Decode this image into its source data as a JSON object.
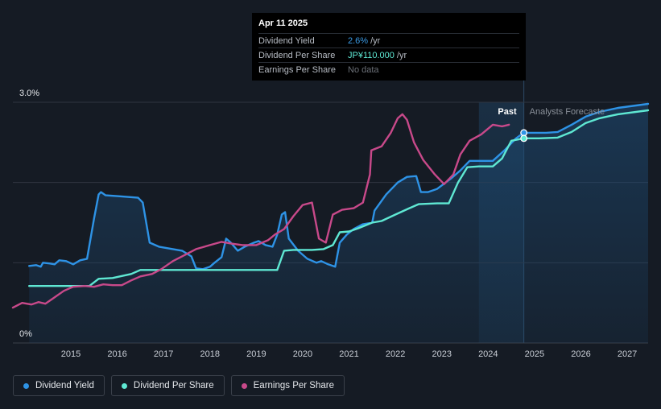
{
  "colors": {
    "background": "#151b24",
    "dividend_yield": "#2e93e6",
    "dividend_per_share": "#5fe8d3",
    "earnings_per_share": "#c8498a",
    "forecast_band": "#1c3a55"
  },
  "tooltip": {
    "date": "Apr 11 2025",
    "rows": [
      {
        "label": "Dividend Yield",
        "value": "2.6%",
        "unit": "/yr"
      },
      {
        "label": "Dividend Per Share",
        "value": "JP¥110.000",
        "unit": "/yr"
      },
      {
        "label": "Earnings Per Share",
        "value": "No data",
        "unit": ""
      }
    ]
  },
  "legend": [
    {
      "label": "Dividend Yield",
      "color": "#2e93e6"
    },
    {
      "label": "Dividend Per Share",
      "color": "#5fe8d3"
    },
    {
      "label": "Earnings Per Share",
      "color": "#c8498a"
    }
  ],
  "chart_data": {
    "type": "line",
    "y_tick_labels": [
      "3.0%",
      "0%"
    ],
    "ylim": [
      0,
      3.0
    ],
    "xlim": [
      2014.25,
      2027.95
    ],
    "x_tick_labels": [
      "2015",
      "2016",
      "2017",
      "2018",
      "2019",
      "2020",
      "2021",
      "2022",
      "2023",
      "2024",
      "2025",
      "2026",
      "2027"
    ],
    "regions": {
      "past_label": "Past",
      "forecast_label": "Analysts Forecaste",
      "past_band_start": 2024.3,
      "divider": 2025.27
    },
    "grid": "horizontal",
    "series": [
      {
        "name": "Dividend Yield",
        "key": "dividend_yield",
        "filled": true,
        "points": [
          [
            2014.6,
            0.96
          ],
          [
            2014.75,
            0.97
          ],
          [
            2014.85,
            0.95
          ],
          [
            2014.9,
            1.0
          ],
          [
            2015.05,
            0.99
          ],
          [
            2015.15,
            0.98
          ],
          [
            2015.25,
            1.03
          ],
          [
            2015.4,
            1.02
          ],
          [
            2015.55,
            0.98
          ],
          [
            2015.7,
            1.03
          ],
          [
            2015.85,
            1.05
          ],
          [
            2016.0,
            1.55
          ],
          [
            2016.1,
            1.85
          ],
          [
            2016.15,
            1.88
          ],
          [
            2016.25,
            1.84
          ],
          [
            2016.5,
            1.83
          ],
          [
            2016.95,
            1.81
          ],
          [
            2017.05,
            1.75
          ],
          [
            2017.2,
            1.25
          ],
          [
            2017.4,
            1.2
          ],
          [
            2017.6,
            1.18
          ],
          [
            2017.9,
            1.15
          ],
          [
            2018.1,
            1.08
          ],
          [
            2018.2,
            0.93
          ],
          [
            2018.35,
            0.92
          ],
          [
            2018.5,
            0.95
          ],
          [
            2018.6,
            1.0
          ],
          [
            2018.75,
            1.07
          ],
          [
            2018.85,
            1.3
          ],
          [
            2018.95,
            1.25
          ],
          [
            2019.1,
            1.15
          ],
          [
            2019.25,
            1.2
          ],
          [
            2019.45,
            1.25
          ],
          [
            2019.55,
            1.27
          ],
          [
            2019.7,
            1.22
          ],
          [
            2019.85,
            1.2
          ],
          [
            2019.95,
            1.35
          ],
          [
            2020.05,
            1.6
          ],
          [
            2020.12,
            1.63
          ],
          [
            2020.2,
            1.3
          ],
          [
            2020.4,
            1.15
          ],
          [
            2020.6,
            1.05
          ],
          [
            2020.8,
            1.0
          ],
          [
            2020.9,
            1.02
          ],
          [
            2021.05,
            0.98
          ],
          [
            2021.2,
            0.95
          ],
          [
            2021.3,
            1.25
          ],
          [
            2021.45,
            1.35
          ],
          [
            2021.6,
            1.42
          ],
          [
            2021.8,
            1.48
          ],
          [
            2022.0,
            1.5
          ],
          [
            2022.05,
            1.65
          ],
          [
            2022.3,
            1.85
          ],
          [
            2022.55,
            2.0
          ],
          [
            2022.75,
            2.07
          ],
          [
            2022.95,
            2.08
          ],
          [
            2023.05,
            1.88
          ],
          [
            2023.2,
            1.88
          ],
          [
            2023.4,
            1.92
          ],
          [
            2023.7,
            2.05
          ],
          [
            2023.9,
            2.15
          ],
          [
            2024.1,
            2.27
          ],
          [
            2024.3,
            2.27
          ],
          [
            2024.6,
            2.27
          ],
          [
            2024.85,
            2.4
          ],
          [
            2025.1,
            2.55
          ],
          [
            2025.27,
            2.62
          ],
          [
            2025.5,
            2.62
          ],
          [
            2025.75,
            2.62
          ],
          [
            2026.0,
            2.63
          ],
          [
            2026.3,
            2.72
          ],
          [
            2026.6,
            2.82
          ],
          [
            2026.9,
            2.88
          ],
          [
            2027.3,
            2.93
          ],
          [
            2027.95,
            2.98
          ]
        ]
      },
      {
        "name": "Dividend Per Share",
        "key": "dividend_per_share",
        "filled": false,
        "points": [
          [
            2014.6,
            0.71
          ],
          [
            2015.9,
            0.71
          ],
          [
            2016.1,
            0.8
          ],
          [
            2016.4,
            0.81
          ],
          [
            2016.8,
            0.86
          ],
          [
            2017.0,
            0.91
          ],
          [
            2017.6,
            0.91
          ],
          [
            2019.95,
            0.91
          ],
          [
            2020.1,
            1.15
          ],
          [
            2020.3,
            1.16
          ],
          [
            2020.7,
            1.16
          ],
          [
            2020.95,
            1.17
          ],
          [
            2021.15,
            1.22
          ],
          [
            2021.3,
            1.38
          ],
          [
            2021.5,
            1.39
          ],
          [
            2021.7,
            1.43
          ],
          [
            2022.0,
            1.5
          ],
          [
            2022.2,
            1.52
          ],
          [
            2022.5,
            1.6
          ],
          [
            2022.8,
            1.68
          ],
          [
            2023.0,
            1.73
          ],
          [
            2023.4,
            1.74
          ],
          [
            2023.65,
            1.74
          ],
          [
            2023.85,
            2.0
          ],
          [
            2024.05,
            2.19
          ],
          [
            2024.3,
            2.2
          ],
          [
            2024.6,
            2.2
          ],
          [
            2024.8,
            2.3
          ],
          [
            2025.0,
            2.52
          ],
          [
            2025.27,
            2.55
          ],
          [
            2025.6,
            2.55
          ],
          [
            2026.0,
            2.56
          ],
          [
            2026.3,
            2.63
          ],
          [
            2026.6,
            2.74
          ],
          [
            2026.9,
            2.8
          ],
          [
            2027.3,
            2.85
          ],
          [
            2027.95,
            2.9
          ]
        ]
      },
      {
        "name": "Earnings Per Share",
        "key": "earnings_per_share",
        "filled": false,
        "points": [
          [
            2014.25,
            0.44
          ],
          [
            2014.45,
            0.5
          ],
          [
            2014.65,
            0.48
          ],
          [
            2014.8,
            0.51
          ],
          [
            2014.95,
            0.49
          ],
          [
            2015.1,
            0.55
          ],
          [
            2015.35,
            0.65
          ],
          [
            2015.55,
            0.7
          ],
          [
            2015.8,
            0.71
          ],
          [
            2016.0,
            0.7
          ],
          [
            2016.2,
            0.73
          ],
          [
            2016.4,
            0.72
          ],
          [
            2016.6,
            0.72
          ],
          [
            2016.8,
            0.78
          ],
          [
            2017.0,
            0.83
          ],
          [
            2017.25,
            0.86
          ],
          [
            2017.45,
            0.92
          ],
          [
            2017.7,
            1.02
          ],
          [
            2017.9,
            1.08
          ],
          [
            2018.2,
            1.17
          ],
          [
            2018.5,
            1.22
          ],
          [
            2018.75,
            1.26
          ],
          [
            2018.95,
            1.24
          ],
          [
            2019.2,
            1.22
          ],
          [
            2019.5,
            1.22
          ],
          [
            2019.75,
            1.28
          ],
          [
            2019.9,
            1.35
          ],
          [
            2020.1,
            1.42
          ],
          [
            2020.3,
            1.58
          ],
          [
            2020.5,
            1.72
          ],
          [
            2020.7,
            1.75
          ],
          [
            2020.85,
            1.3
          ],
          [
            2021.0,
            1.25
          ],
          [
            2021.15,
            1.6
          ],
          [
            2021.35,
            1.66
          ],
          [
            2021.6,
            1.68
          ],
          [
            2021.8,
            1.75
          ],
          [
            2021.95,
            2.1
          ],
          [
            2021.98,
            2.4
          ],
          [
            2022.2,
            2.45
          ],
          [
            2022.4,
            2.62
          ],
          [
            2022.55,
            2.8
          ],
          [
            2022.65,
            2.85
          ],
          [
            2022.75,
            2.78
          ],
          [
            2022.9,
            2.5
          ],
          [
            2023.1,
            2.28
          ],
          [
            2023.35,
            2.1
          ],
          [
            2023.55,
            1.98
          ],
          [
            2023.75,
            2.1
          ],
          [
            2023.9,
            2.35
          ],
          [
            2024.1,
            2.52
          ],
          [
            2024.35,
            2.6
          ],
          [
            2024.6,
            2.72
          ],
          [
            2024.8,
            2.7
          ],
          [
            2024.95,
            2.72
          ]
        ]
      }
    ],
    "markers": [
      {
        "series": "dividend_yield",
        "x": 2025.27,
        "y": 2.62
      },
      {
        "series": "dividend_per_share",
        "x": 2025.27,
        "y": 2.55
      }
    ]
  }
}
